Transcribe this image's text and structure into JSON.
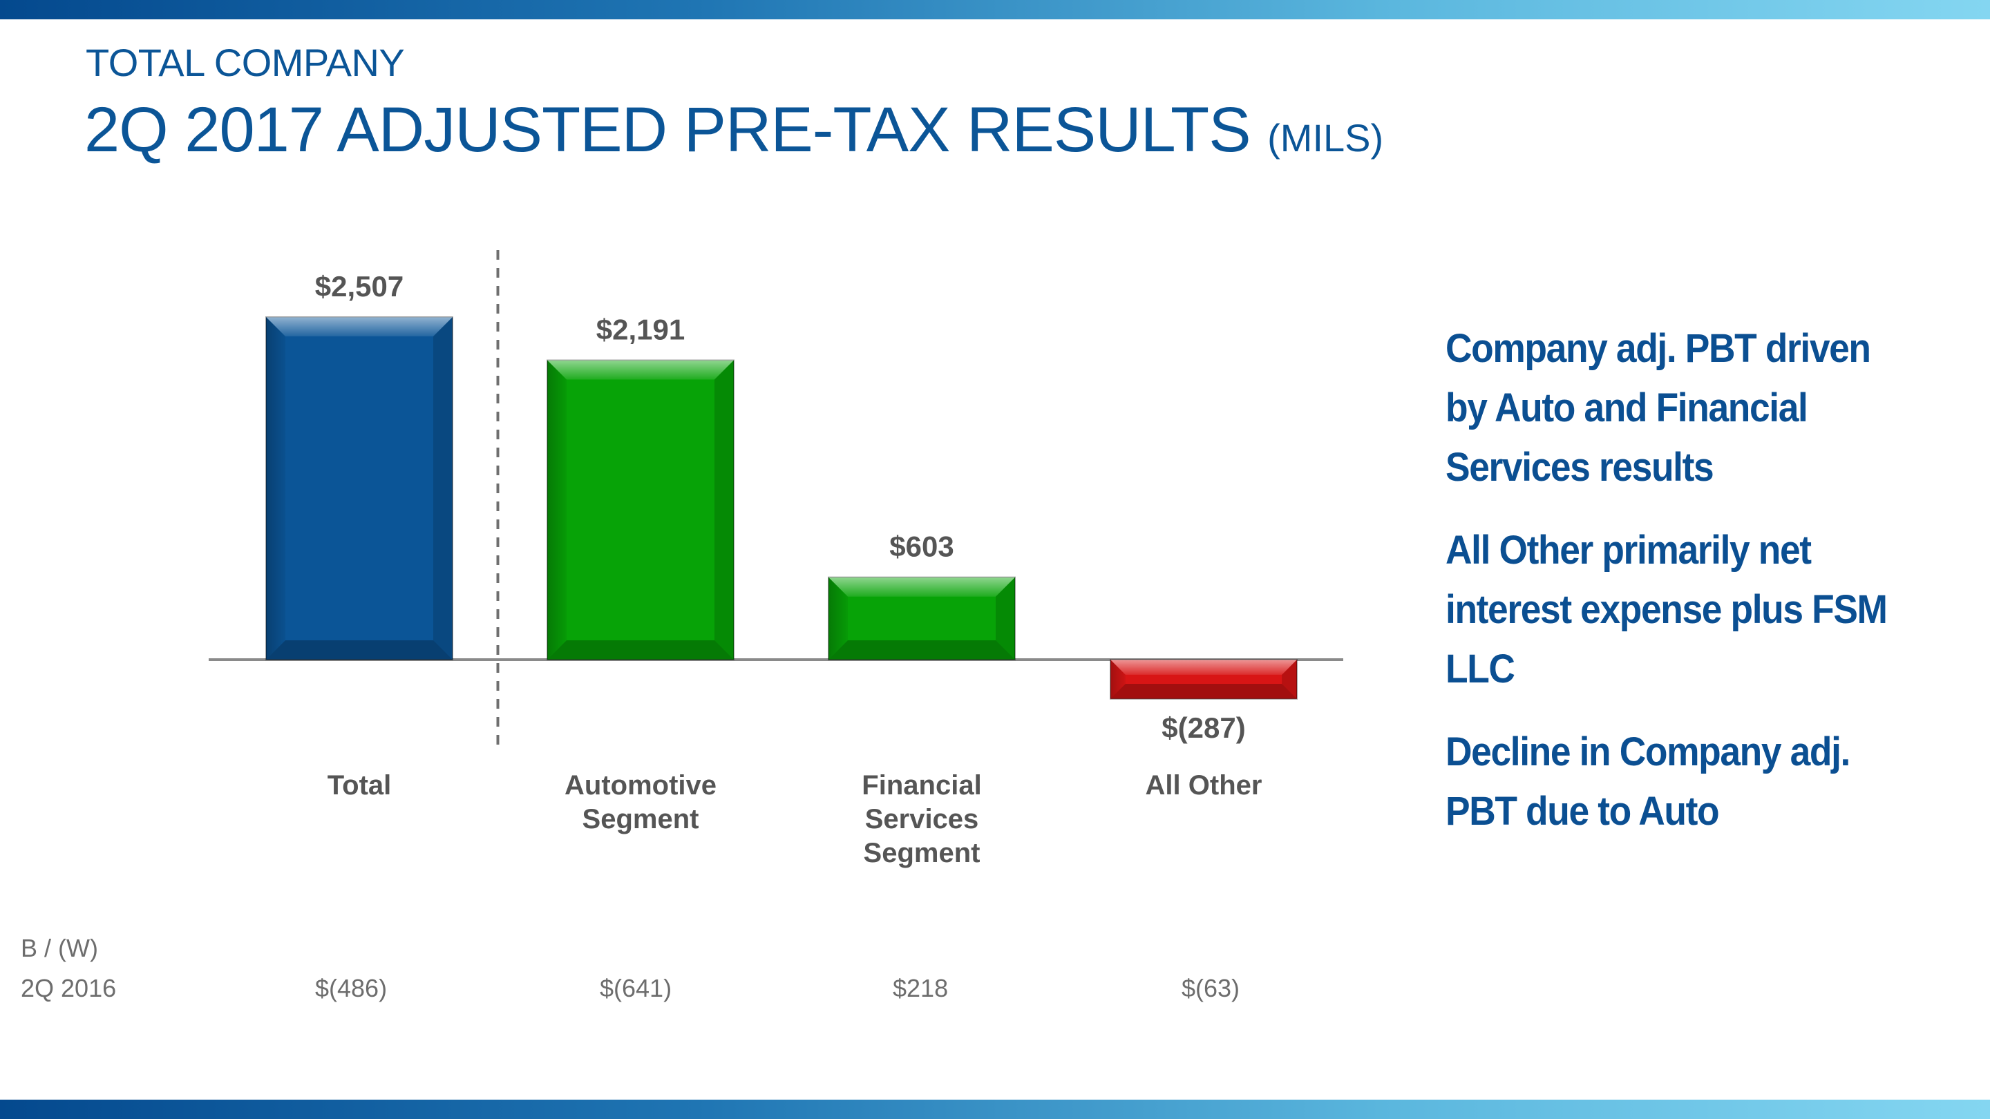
{
  "header": {
    "subtitle": "TOTAL COMPANY",
    "title": "2Q 2017 ADJUSTED PRE-TAX RESULTS",
    "unit": "(MILS)"
  },
  "chart_data": {
    "type": "bar",
    "title": "2Q 2017 Adjusted Pre-Tax Results (Mils)",
    "categories": [
      [
        "Total"
      ],
      [
        "Automotive",
        "Segment"
      ],
      [
        "Financial",
        "Services",
        "Segment"
      ],
      [
        "All Other"
      ]
    ],
    "values": [
      2507,
      2191,
      603,
      -287
    ],
    "value_labels": [
      "$2,507",
      "$2,191",
      "$603",
      "$(287)"
    ],
    "colors": [
      "#0b5597",
      "#07a307",
      "#07a307",
      "#d81515"
    ],
    "divider_after_index": 0,
    "ylim": [
      -500,
      2800
    ],
    "xlabel": "",
    "ylabel": ""
  },
  "comparison": {
    "label_line1": "B / (W)",
    "label_line2": "2Q 2016",
    "values": [
      "$(486)",
      "$(641)",
      "$218",
      "$(63)"
    ]
  },
  "bullets": [
    "Company adj. PBT driven by Auto and Financial Services results",
    "All Other primarily net interest expense plus FSM LLC",
    "Decline in Company adj. PBT due to Auto"
  ]
}
